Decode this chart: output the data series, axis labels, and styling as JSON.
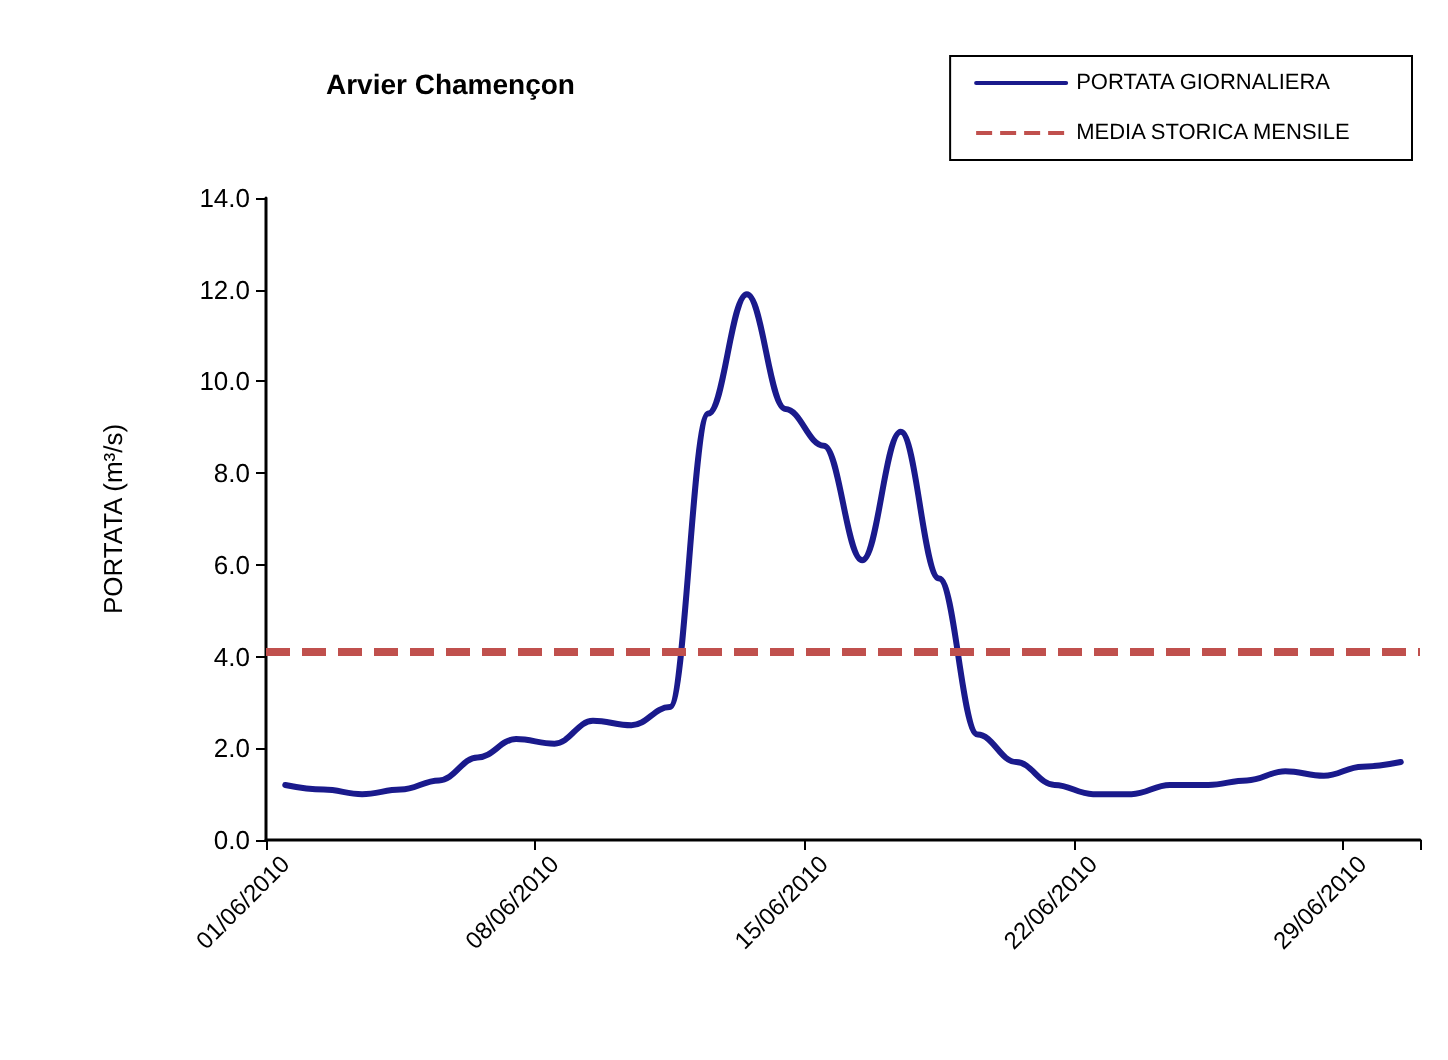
{
  "chart_data": {
    "type": "line",
    "title": "Arvier Chamençon",
    "ylabel": "PORTATA (m³/s)",
    "categories": [
      "01/06/2010",
      null,
      null,
      null,
      null,
      null,
      null,
      "08/06/2010",
      null,
      null,
      null,
      null,
      null,
      null,
      "15/06/2010",
      null,
      null,
      null,
      null,
      null,
      null,
      "22/06/2010",
      null,
      null,
      null,
      null,
      null,
      null,
      "29/06/2010",
      null
    ],
    "series": [
      {
        "name": "PORTATA GIORNALIERA",
        "color": "#1a1a8c",
        "values": [
          1.2,
          1.1,
          1.0,
          1.1,
          1.3,
          1.8,
          2.2,
          2.1,
          2.6,
          2.5,
          2.9,
          9.3,
          11.9,
          9.4,
          8.6,
          6.1,
          8.9,
          5.7,
          2.3,
          1.7,
          1.2,
          1.0,
          1.0,
          1.2,
          1.2,
          1.3,
          1.5,
          1.4,
          1.6,
          1.7
        ]
      }
    ],
    "ref_lines": [
      {
        "axis": "y",
        "value": 4.1,
        "label": "MEDIA STORICA MENSILE",
        "color": "#c0504d",
        "line_style": "dashed"
      }
    ],
    "ylim": [
      0,
      14
    ],
    "yticks": [
      {
        "value": 0,
        "label": "0.0"
      },
      {
        "value": 2,
        "label": "2.0"
      },
      {
        "value": 4,
        "label": "4.0"
      },
      {
        "value": 6,
        "label": "6.0"
      },
      {
        "value": 8,
        "label": "8.0"
      },
      {
        "value": 10,
        "label": "10.0"
      },
      {
        "value": 12,
        "label": "12.0"
      },
      {
        "value": 14,
        "label": "14.0"
      }
    ],
    "grid": false,
    "legend": "top right",
    "marker": "none",
    "line_style": "solid"
  }
}
